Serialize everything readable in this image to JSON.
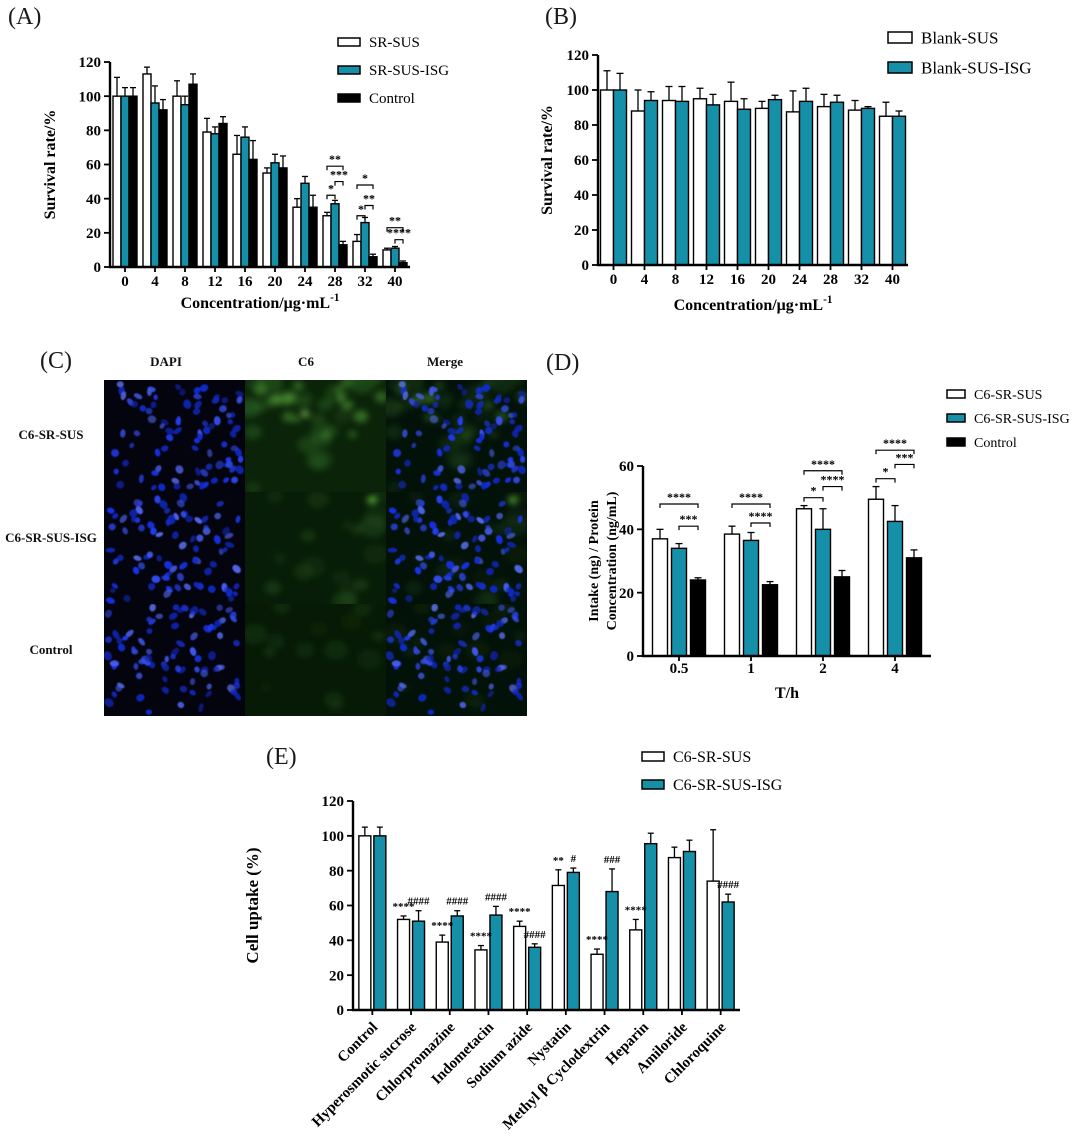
{
  "colors": {
    "teal": "#1590a8",
    "white_bar": "#ffffff",
    "black_bar": "#000000",
    "dapi_blue": "#2a3bec",
    "c6_green": "#3a7d2b"
  },
  "panels": {
    "a": "(A)",
    "b": "(B)",
    "c": "(C)",
    "d": "(D)",
    "e": "(E)"
  },
  "panel_c": {
    "columns": [
      "DAPI",
      "C6",
      "Merge"
    ],
    "rows": [
      "C6-SR-SUS",
      "C6-SR-SUS-ISG",
      "Control"
    ]
  },
  "chart_data": [
    {
      "id": "A",
      "type": "bar",
      "categories": [
        "0",
        "4",
        "8",
        "12",
        "16",
        "20",
        "24",
        "28",
        "32",
        "40"
      ],
      "series": [
        {
          "name": "SR-SUS",
          "color": "#ffffff",
          "values": [
            100,
            113,
            100,
            79,
            66,
            55,
            35,
            30,
            15,
            10
          ],
          "errors": [
            11,
            4,
            9,
            8,
            11,
            3,
            5,
            2,
            4,
            1
          ]
        },
        {
          "name": "SR-SUS-ISG",
          "color": "#1590a8",
          "values": [
            100,
            96,
            95,
            78,
            76,
            61,
            49,
            37,
            26,
            11
          ],
          "errors": [
            5,
            10,
            5,
            4,
            6,
            5,
            4,
            2,
            3,
            1
          ]
        },
        {
          "name": "Control",
          "color": "#000000",
          "values": [
            100,
            92,
            107,
            84,
            63,
            58,
            35,
            13,
            6,
            2.5
          ],
          "errors": [
            5,
            6,
            6,
            4,
            11,
            7,
            7,
            2,
            1.5,
            1
          ]
        }
      ],
      "ylabel": "Survival rate/%",
      "xlabel": {
        "text": "Concentration/μg·mL",
        "sup": "-1"
      },
      "ylim": [
        0,
        120
      ],
      "yticks": [
        0,
        20,
        40,
        60,
        80,
        100,
        120
      ],
      "legend_position": "top-right",
      "grid": false,
      "annotations": [
        {
          "type": "bracket",
          "group": 7,
          "from": 0,
          "to": 1,
          "y": 42,
          "label": "*"
        },
        {
          "type": "bracket",
          "group": 7,
          "from": 1,
          "to": 2,
          "y": 50,
          "label": "***"
        },
        {
          "type": "bracket",
          "group": 7,
          "from": 0,
          "to": 2,
          "y": 59,
          "label": "**"
        },
        {
          "type": "bracket",
          "group": 8,
          "from": 0,
          "to": 1,
          "y": 30,
          "label": "*"
        },
        {
          "type": "bracket",
          "group": 8,
          "from": 1,
          "to": 2,
          "y": 36,
          "label": "**"
        },
        {
          "type": "bracket",
          "group": 8,
          "from": 0,
          "to": 2,
          "y": 48,
          "label": "*"
        },
        {
          "type": "bracket",
          "group": 9,
          "from": 1,
          "to": 2,
          "y": 16,
          "label": "****"
        },
        {
          "type": "bracket",
          "group": 9,
          "from": 0,
          "to": 2,
          "y": 23,
          "label": "**"
        }
      ]
    },
    {
      "id": "B",
      "type": "bar",
      "categories": [
        "0",
        "4",
        "8",
        "12",
        "16",
        "20",
        "24",
        "28",
        "32",
        "40"
      ],
      "series": [
        {
          "name": "Blank-SUS",
          "color": "#ffffff",
          "values": [
            100,
            88,
            94,
            95,
            93.5,
            89.5,
            87.5,
            90.5,
            88.5,
            85
          ],
          "errors": [
            11,
            12,
            8,
            6,
            11,
            4,
            12,
            7,
            5.5,
            8
          ]
        },
        {
          "name": "Blank-SUS-ISG",
          "color": "#1590a8",
          "values": [
            100,
            94,
            93.5,
            91.5,
            89,
            94.5,
            93.5,
            93,
            89.5,
            85
          ],
          "errors": [
            9.5,
            5,
            8.5,
            6,
            6,
            2.5,
            7.5,
            4,
            1,
            3
          ]
        }
      ],
      "ylabel": "Survival rate/%",
      "xlabel": {
        "text": "Concentration/μg·mL",
        "sup": "-1"
      },
      "ylim": [
        0,
        120
      ],
      "yticks": [
        0,
        20,
        40,
        60,
        80,
        100,
        120
      ],
      "legend_position": "top-right",
      "grid": false,
      "annotations": []
    },
    {
      "id": "D",
      "type": "bar",
      "categories": [
        "0.5",
        "1",
        "2",
        "4"
      ],
      "series": [
        {
          "name": "C6-SR-SUS",
          "color": "#ffffff",
          "values": [
            37,
            38.5,
            46.5,
            49.5
          ],
          "errors": [
            3,
            2.5,
            1,
            4
          ]
        },
        {
          "name": "C6-SR-SUS-ISG",
          "color": "#1590a8",
          "values": [
            34,
            36.5,
            40,
            42.5
          ],
          "errors": [
            1.5,
            2.5,
            6.5,
            5
          ]
        },
        {
          "name": "Control",
          "color": "#000000",
          "values": [
            24,
            22.5,
            25,
            31
          ],
          "errors": [
            0.7,
            1,
            2,
            2.5
          ]
        }
      ],
      "ylabel": [
        "Intake (ng) / Protein",
        "Concentration (ng/mL)"
      ],
      "xlabel": {
        "text": "T/h"
      },
      "ylim": [
        0,
        60
      ],
      "yticks": [
        0,
        20,
        40,
        60
      ],
      "legend_position": "top-right",
      "grid": false,
      "annotations": [
        {
          "type": "bracket",
          "group": 0,
          "from": 1,
          "to": 2,
          "y": 41,
          "label": "***"
        },
        {
          "type": "bracket",
          "group": 0,
          "from": 0,
          "to": 2,
          "y": 48,
          "label": "****"
        },
        {
          "type": "bracket",
          "group": 1,
          "from": 1,
          "to": 2,
          "y": 42,
          "label": "****"
        },
        {
          "type": "bracket",
          "group": 1,
          "from": 0,
          "to": 2,
          "y": 48,
          "label": "****"
        },
        {
          "type": "bracket",
          "group": 2,
          "from": 0,
          "to": 1,
          "y": 50,
          "label": "*"
        },
        {
          "type": "bracket",
          "group": 2,
          "from": 1,
          "to": 2,
          "y": 53.5,
          "label": "****"
        },
        {
          "type": "bracket",
          "group": 2,
          "from": 0,
          "to": 2,
          "y": 58.5,
          "label": "****"
        },
        {
          "type": "bracket",
          "group": 3,
          "from": 0,
          "to": 1,
          "y": 56,
          "label": "*"
        },
        {
          "type": "bracket",
          "group": 3,
          "from": 1,
          "to": 2,
          "y": 60.5,
          "label": "***"
        },
        {
          "type": "bracket",
          "group": 3,
          "from": 0,
          "to": 2,
          "y": 65,
          "label": "****"
        }
      ]
    },
    {
      "id": "E",
      "type": "bar",
      "categories": [
        "Control",
        "Hyperosmotic sucrose",
        "Chlorpromazine",
        "Indometacin",
        "Sodium azide",
        "Nystatin",
        "Methyl β Cyclodextrin",
        "Heparin",
        "Amiloride",
        "Chloroquine"
      ],
      "series": [
        {
          "name": "C6-SR-SUS",
          "color": "#ffffff",
          "values": [
            100,
            52,
            39,
            34.5,
            48,
            71.5,
            32,
            46,
            87.5,
            74
          ],
          "errors": [
            5,
            2,
            4,
            2.5,
            3,
            9,
            3,
            6,
            6,
            29.5
          ]
        },
        {
          "name": "C6-SR-SUS-ISG",
          "color": "#1590a8",
          "values": [
            100,
            51,
            54,
            54.5,
            36,
            79,
            68,
            95.5,
            91,
            62
          ],
          "errors": [
            5,
            6,
            3,
            5,
            2,
            2.5,
            13,
            6,
            6.5,
            4.5
          ]
        }
      ],
      "ylabel": "Cell uptake (%)",
      "xlabel": null,
      "ylim": [
        0,
        120
      ],
      "yticks": [
        0,
        20,
        40,
        60,
        80,
        100,
        120
      ],
      "legend_position": "top-right",
      "grid": false,
      "annotations": [
        {
          "type": "star",
          "group": 1,
          "series": 0,
          "label": "****"
        },
        {
          "type": "star",
          "group": 1,
          "series": 1,
          "label": "####"
        },
        {
          "type": "star",
          "group": 2,
          "series": 0,
          "label": "****"
        },
        {
          "type": "star",
          "group": 2,
          "series": 1,
          "label": "####"
        },
        {
          "type": "star",
          "group": 3,
          "series": 0,
          "label": "****"
        },
        {
          "type": "star",
          "group": 3,
          "series": 1,
          "label": "####"
        },
        {
          "type": "star",
          "group": 4,
          "series": 0,
          "label": "****"
        },
        {
          "type": "star",
          "group": 4,
          "series": 1,
          "label": "####"
        },
        {
          "type": "star",
          "group": 5,
          "series": 0,
          "label": "**"
        },
        {
          "type": "star",
          "group": 5,
          "series": 1,
          "label": "#"
        },
        {
          "type": "star",
          "group": 6,
          "series": 0,
          "label": "****"
        },
        {
          "type": "star",
          "group": 6,
          "series": 1,
          "label": "###"
        },
        {
          "type": "star",
          "group": 7,
          "series": 0,
          "label": "****"
        },
        {
          "type": "star",
          "group": 9,
          "series": 1,
          "label": "####"
        }
      ]
    }
  ]
}
